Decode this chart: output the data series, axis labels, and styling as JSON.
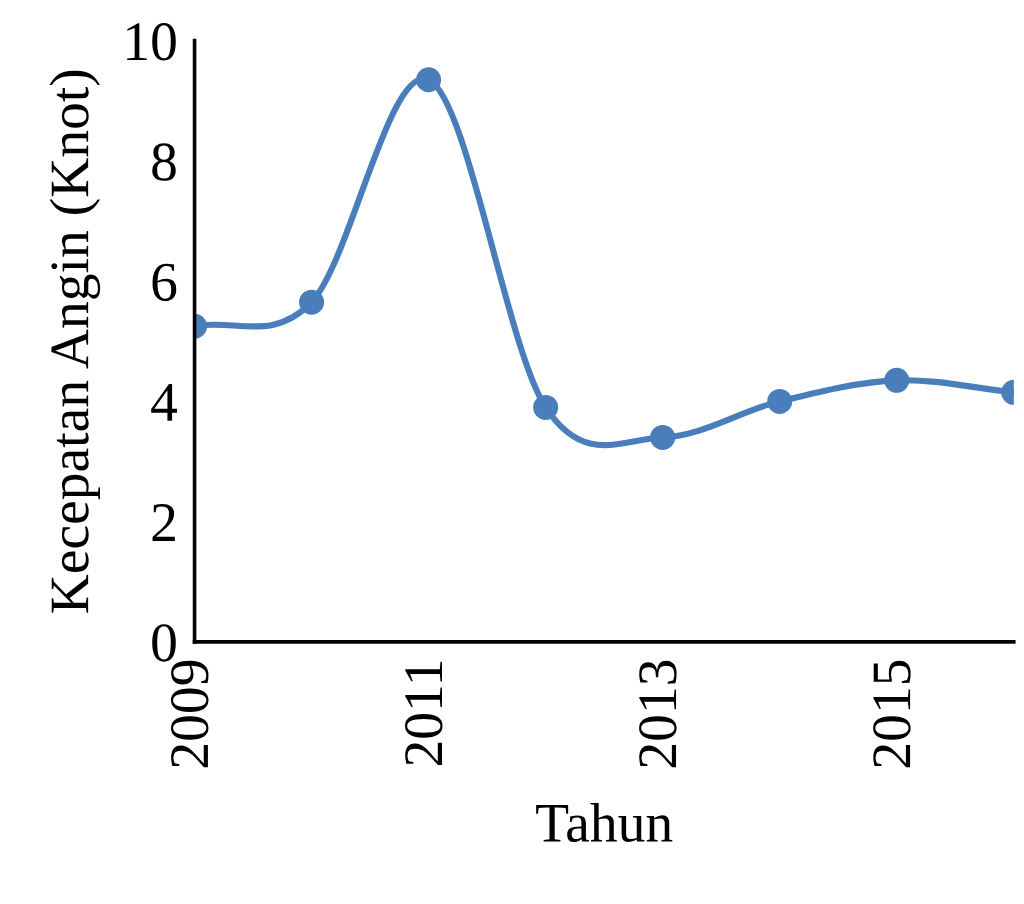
{
  "chart_data": {
    "type": "line",
    "xlabel": "Tahun",
    "ylabel": "Kecepatan Angin (Knot)",
    "x": [
      2009,
      2010,
      2011,
      2012,
      2013,
      2014,
      2015,
      2016
    ],
    "series": [
      {
        "color": "#4a7ebb",
        "values": [
          5.25,
          5.65,
          9.35,
          3.9,
          3.4,
          4.0,
          4.35,
          4.15
        ]
      }
    ],
    "xlim": [
      2009,
      2016
    ],
    "xticks": [
      2009,
      2011,
      2013,
      2015
    ],
    "ylim": [
      0,
      10
    ],
    "yticks": [
      0,
      2,
      4,
      6,
      8,
      10
    ],
    "grid": false,
    "legend": false,
    "marker": "circle",
    "line_style": "solid"
  }
}
